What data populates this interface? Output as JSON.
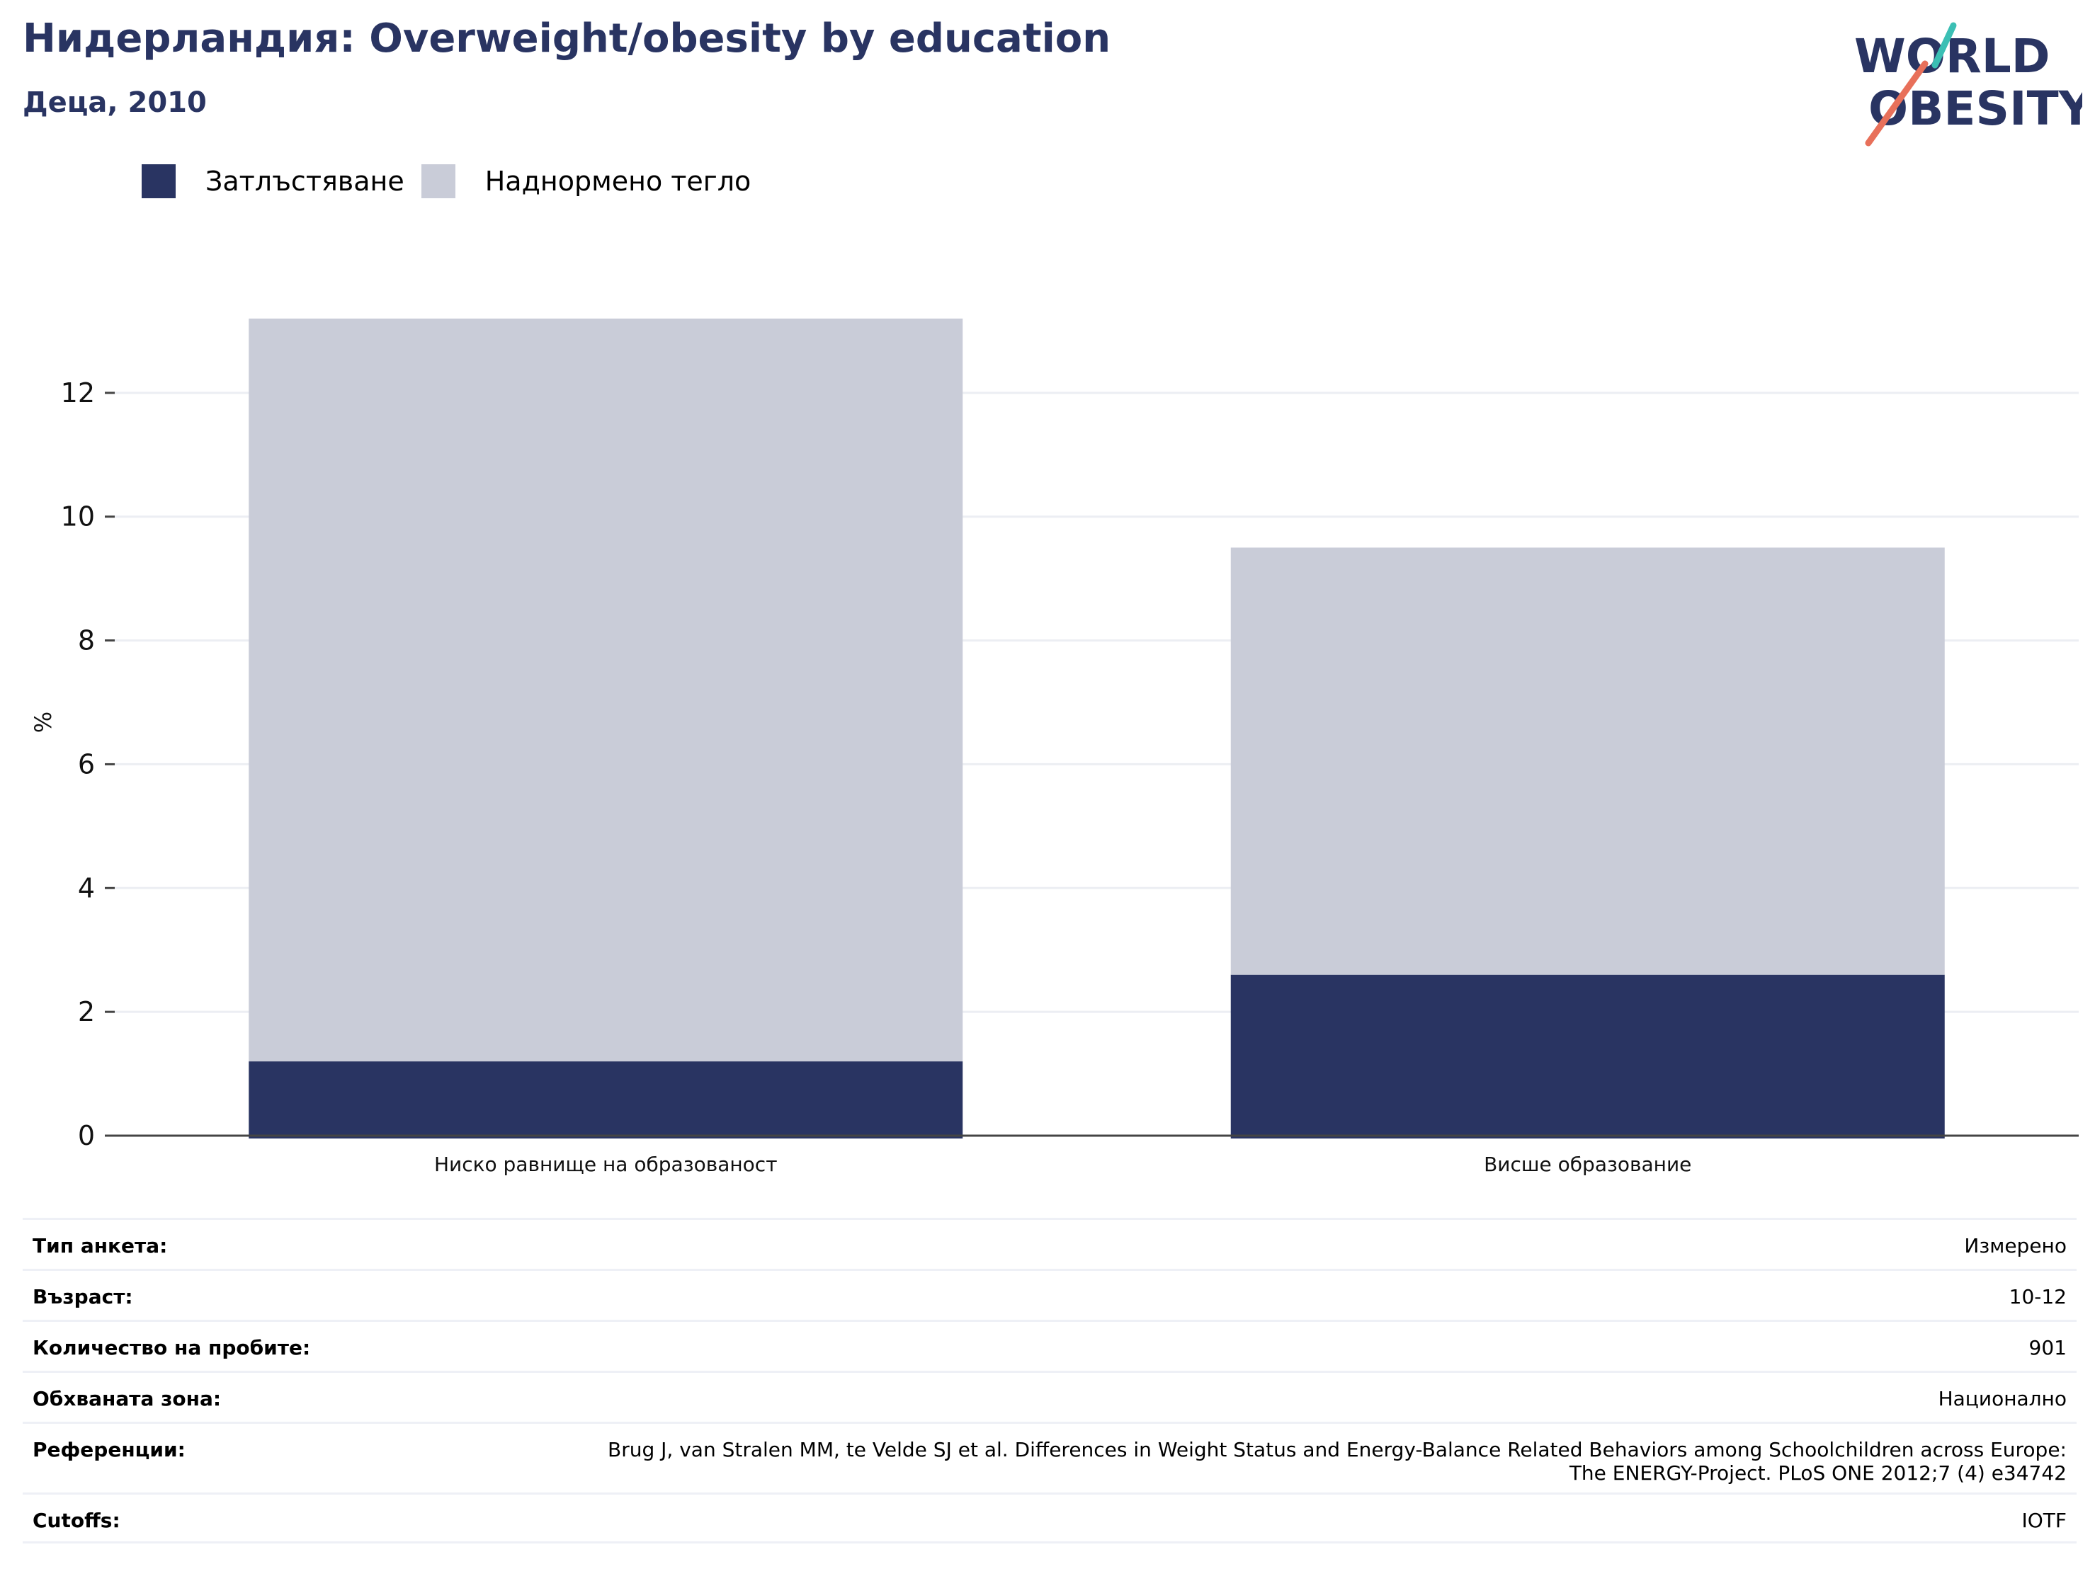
{
  "header": {
    "title": "Нидерландия: Overweight/obesity by education",
    "subtitle": "Деца, 2010",
    "logo_text": [
      "WORLD",
      "OBESITY"
    ]
  },
  "legend": [
    {
      "label": "Затлъстяване",
      "color": "#293462"
    },
    {
      "label": "Наднормено тегло",
      "color": "#c9ccd8"
    }
  ],
  "chart_data": {
    "type": "bar",
    "stacked": true,
    "categories": [
      "Ниско равнище на образованост",
      "Висше образование"
    ],
    "series": [
      {
        "name": "Затлъстяване",
        "color": "#293462",
        "values": [
          1.2,
          2.6
        ]
      },
      {
        "name": "Наднормено тегло",
        "color": "#c9ccd8",
        "values": [
          12.0,
          6.9
        ]
      }
    ],
    "ylabel": "%",
    "ylim": [
      0,
      14
    ],
    "yticks": [
      0,
      2,
      4,
      6,
      8,
      10,
      12
    ],
    "grid": true
  },
  "meta": [
    {
      "label": "Тип анкета:",
      "value": "Измерено"
    },
    {
      "label": "Възраст:",
      "value": "10-12"
    },
    {
      "label": "Количество на пробите:",
      "value": "901"
    },
    {
      "label": "Обхваната зона:",
      "value": "Национално"
    },
    {
      "label": "Референции:",
      "value": "Brug J, van Stralen MM, te Velde SJ et al. Differences in Weight Status and Energy-Balance Related Behaviors among Schoolchildren across Europe: The ENERGY-Project. PLoS ONE 2012;7 (4) e34742"
    },
    {
      "label": "Cutoffs:",
      "value": "IOTF"
    }
  ]
}
